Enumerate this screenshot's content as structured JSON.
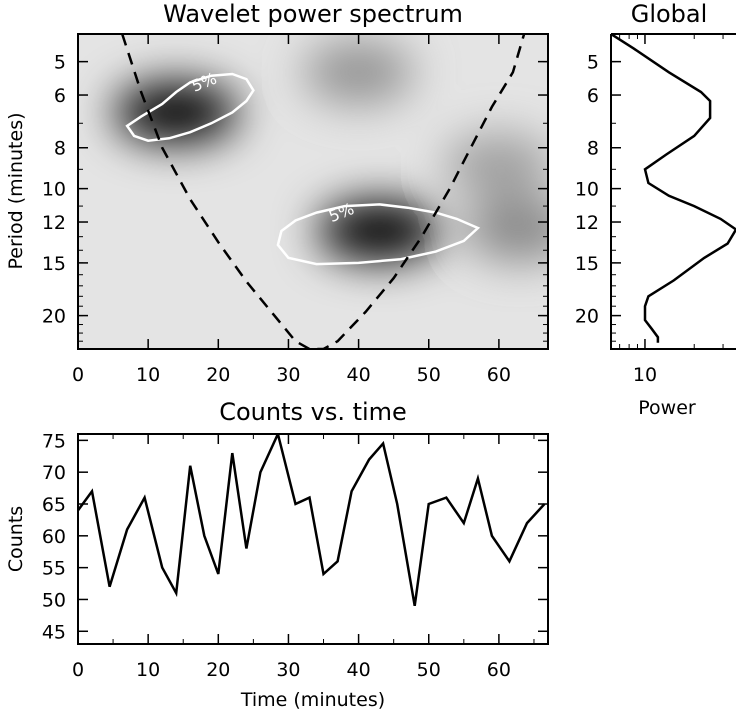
{
  "chart_data": [
    {
      "type": "heatmap",
      "title": "Wavelet power spectrum",
      "xlabel": "",
      "ylabel": "Period (minutes)",
      "xlim": [
        0,
        67
      ],
      "ylim": [
        4.3,
        24
      ],
      "y_scale": "log",
      "y_reversed": true,
      "x_ticks": [
        "0",
        "10",
        "20",
        "30",
        "40",
        "50",
        "60"
      ],
      "y_ticks": [
        "5",
        "6",
        "8",
        "10",
        "12",
        "15",
        "20"
      ],
      "colormap": "white-to-black (inverted grayscale)",
      "power_peaks": [
        {
          "time": 14,
          "period": 6.6,
          "strength": 1.0
        },
        {
          "time": 43,
          "period": 12.6,
          "strength": 1.0
        },
        {
          "time": 40,
          "period": 5.3,
          "strength": 0.35
        },
        {
          "time": 60,
          "period": 8.8,
          "strength": 0.3
        },
        {
          "time": 63,
          "period": 12.5,
          "strength": 0.4
        }
      ],
      "contours": [
        {
          "label": "5%",
          "color": "#ffffff",
          "points": [
            [
              7,
              7.1
            ],
            [
              9,
              6.75
            ],
            [
              12,
              6.3
            ],
            [
              14,
              5.9
            ],
            [
              16,
              5.6
            ],
            [
              19,
              5.4
            ],
            [
              22,
              5.35
            ],
            [
              24,
              5.5
            ],
            [
              25,
              5.85
            ],
            [
              24,
              6.2
            ],
            [
              22,
              6.6
            ],
            [
              19,
              7.0
            ],
            [
              16,
              7.35
            ],
            [
              13,
              7.6
            ],
            [
              10,
              7.7
            ],
            [
              8,
              7.5
            ],
            [
              7,
              7.1
            ]
          ]
        },
        {
          "label": "5%",
          "color": "#ffffff",
          "points": [
            [
              29,
              12.6
            ],
            [
              31,
              11.9
            ],
            [
              34,
              11.4
            ],
            [
              38,
              11.0
            ],
            [
              43,
              10.9
            ],
            [
              47,
              11.1
            ],
            [
              51,
              11.4
            ],
            [
              54,
              11.8
            ],
            [
              57,
              12.4
            ],
            [
              55,
              13.3
            ],
            [
              51,
              14.1
            ],
            [
              46,
              14.7
            ],
            [
              40,
              15.0
            ],
            [
              34,
              15.1
            ],
            [
              30,
              14.6
            ],
            [
              28.5,
              13.6
            ],
            [
              29,
              12.6
            ]
          ]
        }
      ],
      "cone_of_influence": {
        "style": "dashed",
        "points": [
          [
            6.3,
            4.3
          ],
          [
            9,
            5.9
          ],
          [
            12,
            8.0
          ],
          [
            16,
            10.6
          ],
          [
            20,
            13.4
          ],
          [
            24,
            16.6
          ],
          [
            28,
            20.0
          ],
          [
            31,
            23.0
          ],
          [
            33,
            24
          ],
          [
            35,
            24
          ],
          [
            37,
            23.0
          ],
          [
            41,
            19.6
          ],
          [
            45,
            16.3
          ],
          [
            49,
            13.0
          ],
          [
            53,
            10.0
          ],
          [
            56,
            8.0
          ],
          [
            59,
            6.4
          ],
          [
            62,
            5.3
          ],
          [
            63.6,
            4.3
          ]
        ]
      }
    },
    {
      "type": "line",
      "title": "Global",
      "xlabel": "Power",
      "ylabel": "",
      "x_scale": "log",
      "xlim": [
        6.2,
        36
      ],
      "ylim": [
        4.3,
        24
      ],
      "y_scale": "log",
      "y_reversed": true,
      "x_ticks": [
        "10"
      ],
      "y_ticks": [
        "5",
        "6",
        "8",
        "10",
        "12",
        "15",
        "20"
      ],
      "series": [
        {
          "points": [
            [
              6.2,
              4.3
            ],
            [
              8.5,
              4.65
            ],
            [
              14,
              5.3
            ],
            [
              22,
              5.9
            ],
            [
              25,
              6.2
            ],
            [
              25,
              6.8
            ],
            [
              20,
              7.5
            ],
            [
              13.5,
              8.3
            ],
            [
              10,
              9.0
            ],
            [
              10.5,
              9.7
            ],
            [
              14,
              10.4
            ],
            [
              20,
              11.0
            ],
            [
              29,
              11.8
            ],
            [
              36,
              12.5
            ],
            [
              32,
              13.5
            ],
            [
              23,
              14.6
            ],
            [
              15,
              16.5
            ],
            [
              10.5,
              18.0
            ],
            [
              10,
              19.0
            ],
            [
              10,
              20.5
            ],
            [
              11,
              21.5
            ],
            [
              12,
              22.5
            ],
            [
              12,
              23.2
            ]
          ]
        }
      ]
    },
    {
      "type": "line",
      "title": "Counts vs. time",
      "xlabel": "Time (minutes)",
      "ylabel": "Counts",
      "xlim": [
        0,
        67
      ],
      "ylim": [
        43,
        76
      ],
      "x_ticks": [
        "0",
        "10",
        "20",
        "30",
        "40",
        "50",
        "60"
      ],
      "y_ticks": [
        "45",
        "50",
        "55",
        "60",
        "65",
        "70",
        "75"
      ],
      "series": [
        {
          "x": [
            0,
            2,
            4.5,
            7,
            9.5,
            12,
            14,
            16,
            18,
            20,
            22,
            24,
            26,
            28.5,
            31,
            33,
            35,
            37,
            39,
            41.5,
            43.5,
            45.5,
            48,
            50,
            52.5,
            55,
            57,
            59,
            61.5,
            64,
            66.5
          ],
          "y": [
            64,
            67,
            52,
            61,
            66,
            55,
            51,
            71,
            60,
            54,
            73,
            58,
            70,
            76,
            65,
            66,
            54,
            56,
            67,
            72,
            74.5,
            65,
            49,
            65,
            66,
            62,
            69,
            60,
            56,
            62,
            65
          ]
        }
      ]
    }
  ]
}
